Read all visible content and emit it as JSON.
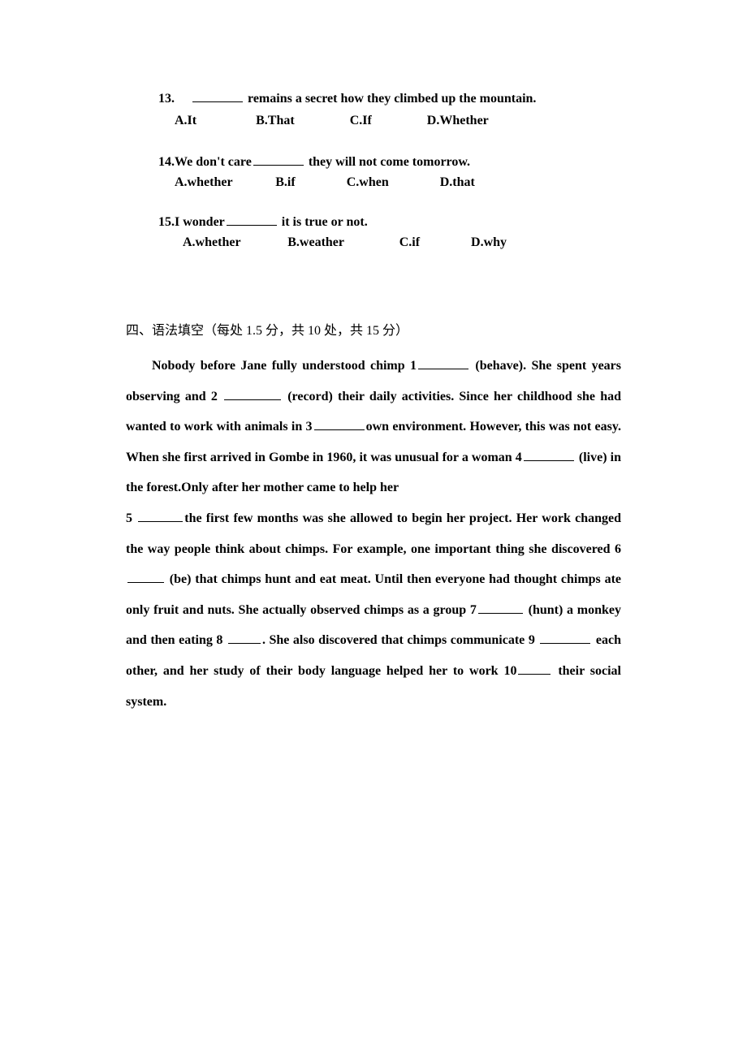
{
  "q13": {
    "number": "13.",
    "text": " remains a secret how they climbed up the mountain.",
    "optA": "A.It",
    "optB": "B.That",
    "optC": "C.If",
    "optD": "D.Whether"
  },
  "q14": {
    "prefix": "14.We don't care",
    "suffix": " they will not come tomorrow.",
    "optA": "A.whether",
    "optB": "B.if",
    "optC": "C.when",
    "optD": "D.that"
  },
  "q15": {
    "prefix": "15.I wonder",
    "suffix": " it is true or not.",
    "optA": "A.whether",
    "optB": "B.weather",
    "optC": "C.if",
    "optD": "D.why"
  },
  "section": {
    "title": "四、语法填空（每处 1.5 分，共 10 处，共 15 分）"
  },
  "passage": {
    "p1a": "Nobody before Jane fully understood chimp 1",
    "p1b": " (behave). She spent years observing and 2 ",
    "p1c": " (record) their daily activities. Since her childhood she had wanted to work with animals in 3",
    "p1d": "own environment. However, this was not easy. When she first arrived in Gombe in 1960, it was unusual for a woman 4",
    "p1e": " (live) in the forest.Only after her mother came to help her",
    "p2a": "5 ",
    "p2b": "the first few months was she allowed to begin her project. Her work changed the way people think about chimps. For example, one important thing she discovered 6",
    "p2c": " (be) that chimps hunt and eat meat. Until then everyone had thought chimps ate only fruit and nuts. She actually observed chimps as a group 7",
    "p2d": " (hunt) a monkey and then eating 8 ",
    "p2e": ". She also discovered that chimps communicate 9 ",
    "p2f": " each other, and her study of their body language helped her to work   10",
    "p2g": " their social system."
  }
}
